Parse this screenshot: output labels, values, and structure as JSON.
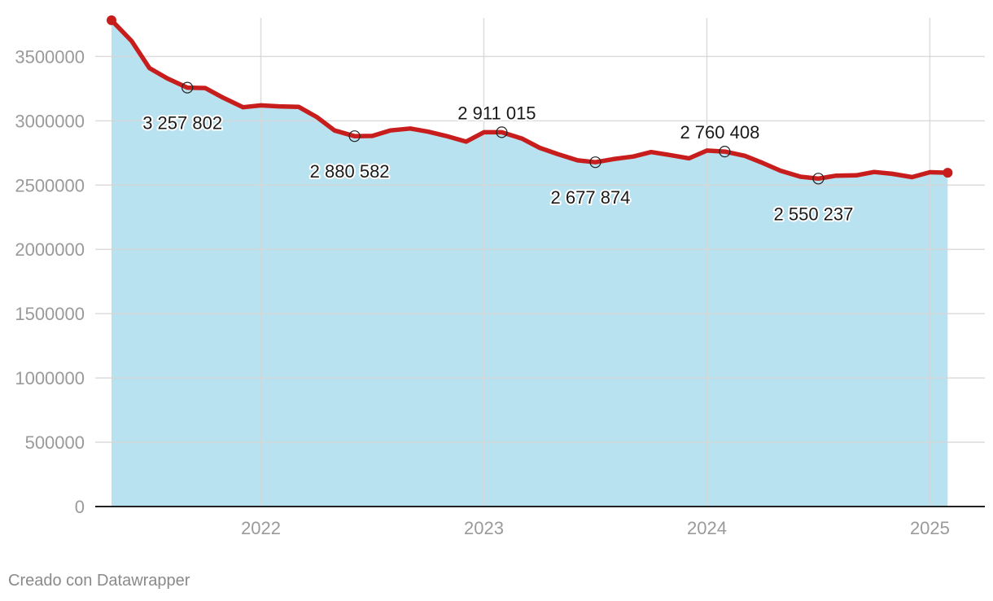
{
  "chart_data": {
    "type": "area",
    "ylim": [
      0,
      3800000
    ],
    "y_ticks": [
      0,
      500000,
      1000000,
      1500000,
      2000000,
      2500000,
      3000000,
      3500000
    ],
    "y_tick_labels": [
      "0",
      "500000",
      "1000000",
      "1500000",
      "2000000",
      "2500000",
      "3000000",
      "3500000"
    ],
    "x_ticks": [
      2022,
      2023,
      2024,
      2025
    ],
    "x_tick_labels": [
      "2022",
      "2023",
      "2024",
      "2025"
    ],
    "xlim": [
      2021.33,
      2025.17
    ],
    "grid": true,
    "line_color": "#c71e1d",
    "fill_color": "#b9e2f0",
    "series": [
      {
        "x": [
          2021.33,
          2021.42,
          2021.5,
          2021.58,
          2021.67,
          2021.75,
          2021.83,
          2021.92,
          2022.0,
          2022.08,
          2022.17,
          2022.25,
          2022.33,
          2022.42,
          2022.5,
          2022.58,
          2022.67,
          2022.75,
          2022.83,
          2022.92,
          2023.0,
          2023.08,
          2023.17,
          2023.25,
          2023.33,
          2023.42,
          2023.5,
          2023.58,
          2023.67,
          2023.75,
          2023.83,
          2023.92,
          2024.0,
          2024.08,
          2024.17,
          2024.25,
          2024.33,
          2024.42,
          2024.5,
          2024.58,
          2024.67,
          2024.75,
          2024.83,
          2024.92,
          2025.0,
          2025.08
        ],
        "values": [
          3782000,
          3620000,
          3410000,
          3330000,
          3257802,
          3255000,
          3180000,
          3105000,
          3120000,
          3112000,
          3108000,
          3030000,
          2925000,
          2880582,
          2882000,
          2925000,
          2940000,
          2915000,
          2882000,
          2838000,
          2911015,
          2911015,
          2862000,
          2790000,
          2742000,
          2692000,
          2677874,
          2702000,
          2722000,
          2757000,
          2735000,
          2708000,
          2768000,
          2760408,
          2728000,
          2672000,
          2612000,
          2565000,
          2550237,
          2573000,
          2576000,
          2602000,
          2588000,
          2562000,
          2600000,
          2596000
        ]
      }
    ],
    "annotations": [
      {
        "x": 2021.67,
        "value": 3257802,
        "label": "3 257 802",
        "position": "below"
      },
      {
        "x": 2022.42,
        "value": 2880582,
        "label": "2 880 582",
        "position": "below"
      },
      {
        "x": 2023.08,
        "value": 2911015,
        "label": "2 911 015",
        "position": "above"
      },
      {
        "x": 2023.5,
        "value": 2677874,
        "label": "2 677 874",
        "position": "below"
      },
      {
        "x": 2024.08,
        "value": 2760408,
        "label": "2 760 408",
        "position": "above"
      },
      {
        "x": 2024.5,
        "value": 2550237,
        "label": "2 550 237",
        "position": "below"
      }
    ]
  },
  "footer": {
    "credit": "Creado con Datawrapper"
  }
}
